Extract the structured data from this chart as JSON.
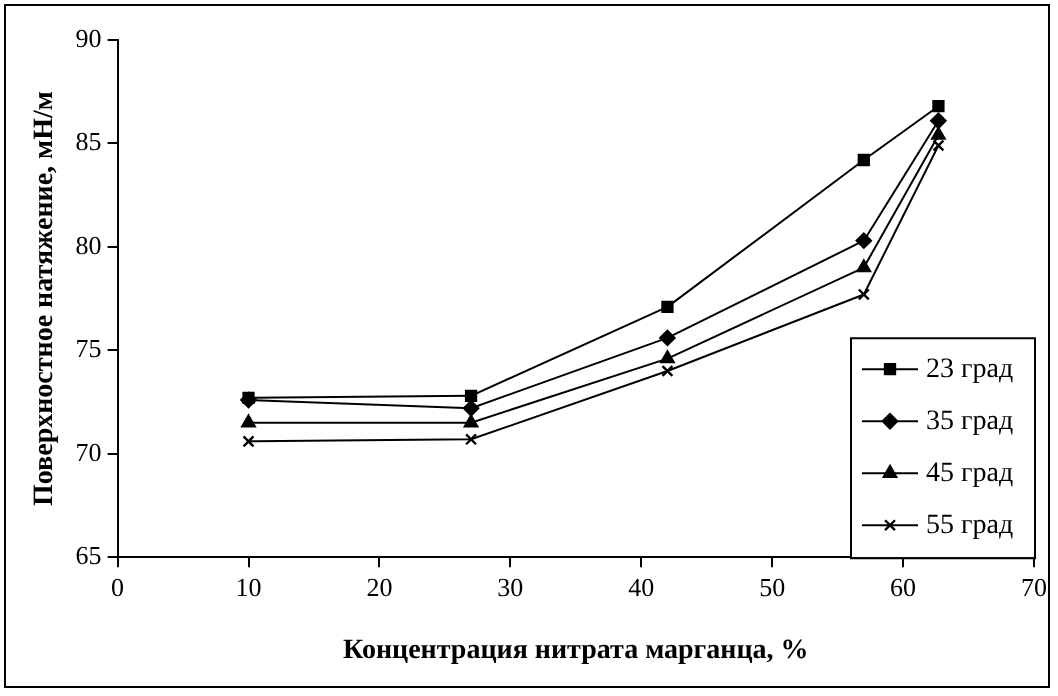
{
  "chart_data": {
    "type": "line",
    "xlabel": "Концентрация нитрата марганца, %",
    "ylabel": "Поверхностное натяжение, мН/м",
    "x": [
      10,
      27,
      42,
      57,
      62.7
    ],
    "series": [
      {
        "name": "23 град",
        "color": "#000000",
        "marker": "square",
        "values": [
          72.7,
          72.8,
          77.1,
          84.2,
          86.8
        ]
      },
      {
        "name": "35 град",
        "color": "#000000",
        "marker": "diamond",
        "values": [
          72.6,
          72.2,
          75.6,
          80.3,
          86.1
        ]
      },
      {
        "name": "45 град",
        "color": "#000000",
        "marker": "triangle",
        "values": [
          71.5,
          71.5,
          74.6,
          79.0,
          85.4
        ]
      },
      {
        "name": "55 град",
        "color": "#000000",
        "marker": "cross",
        "values": [
          70.6,
          70.7,
          74.0,
          77.7,
          84.9
        ]
      }
    ],
    "xlim": [
      0,
      70
    ],
    "xticks": [
      0,
      10,
      20,
      30,
      40,
      50,
      60,
      70
    ],
    "ylim": [
      65,
      90
    ],
    "yticks": [
      65,
      70,
      75,
      80,
      85,
      90
    ],
    "grid": false,
    "legend": "right",
    "line_style": "solid"
  }
}
